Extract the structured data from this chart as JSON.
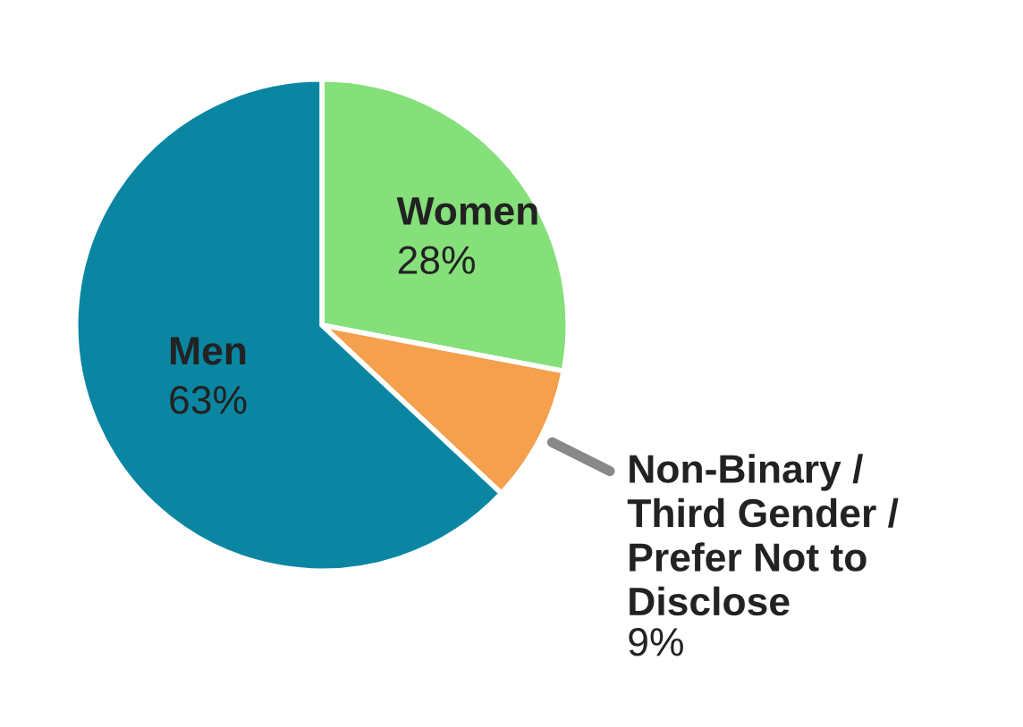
{
  "chart_data": {
    "type": "pie",
    "categories": [
      "Women",
      "Non-Binary /\nThird Gender /\nPrefer Not to\nDisclose",
      "Men"
    ],
    "values": [
      28,
      9,
      63
    ],
    "value_labels": [
      "28%",
      "9%",
      "63%"
    ],
    "colors": [
      "#85e07a",
      "#f4a04c",
      "#0a86a3"
    ]
  }
}
